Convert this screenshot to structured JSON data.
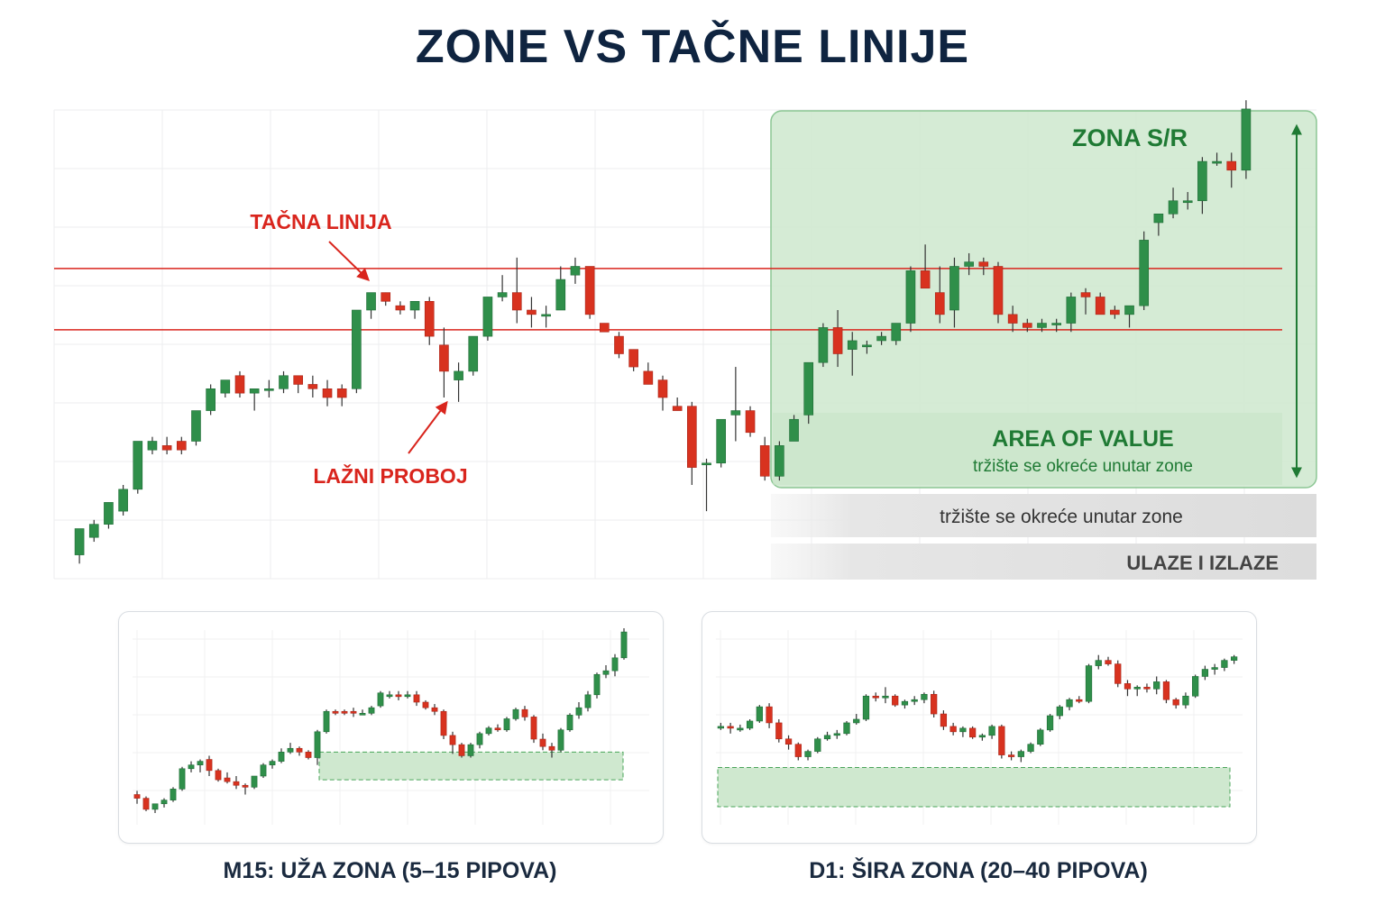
{
  "title": "ZONE VS TAČNE LINIJE",
  "colors": {
    "up": "#2f8f4a",
    "down": "#d8321f",
    "wick": "#333333",
    "line": "#d9251d",
    "zone": "#cfe8cf",
    "zone_border": "#4aa55a",
    "zone_text": "#1f7a34",
    "title": "#0f2440"
  },
  "chart_data": [
    {
      "type": "candlestick",
      "name": "main",
      "annotations": {
        "exact_line_label": "TAČNA LINIJA",
        "false_break_label": "LAŽNI PROBOJ",
        "zone_label": "ZONA S/R",
        "area_of_value_label": "AREA OF VALUE",
        "area_of_value_sub": "tržište se okreće unutar zone",
        "bar1_text": "tržište se okreće unutar zone",
        "bar2_text": "ULAZE I IZLAZE"
      },
      "ylim": [
        0,
        100
      ],
      "lines": [
        69.5,
        55.5
      ],
      "zone": [
        26,
        100
      ],
      "candles": [
        {
          "o": 4,
          "h": 9,
          "l": 2,
          "c": 10
        },
        {
          "o": 8,
          "h": 12,
          "l": 7,
          "c": 11
        },
        {
          "o": 11,
          "h": 16,
          "l": 10,
          "c": 16
        },
        {
          "o": 14,
          "h": 20,
          "l": 13,
          "c": 19
        },
        {
          "o": 19,
          "h": 30,
          "l": 18,
          "c": 30
        },
        {
          "o": 28,
          "h": 31,
          "l": 27,
          "c": 30
        },
        {
          "o": 29,
          "h": 31,
          "l": 27,
          "c": 28
        },
        {
          "o": 30,
          "h": 31,
          "l": 27,
          "c": 28
        },
        {
          "o": 30,
          "h": 36,
          "l": 29,
          "c": 37
        },
        {
          "o": 37,
          "h": 43,
          "l": 36,
          "c": 42
        },
        {
          "o": 41,
          "h": 44,
          "l": 40,
          "c": 44
        },
        {
          "o": 45,
          "h": 46,
          "l": 40,
          "c": 41
        },
        {
          "o": 41,
          "h": 42,
          "l": 37,
          "c": 42
        },
        {
          "o": 42,
          "h": 44,
          "l": 40,
          "c": 42
        },
        {
          "o": 42,
          "h": 46,
          "l": 41,
          "c": 45
        },
        {
          "o": 45,
          "h": 45,
          "l": 41,
          "c": 43
        },
        {
          "o": 43,
          "h": 45,
          "l": 40,
          "c": 42
        },
        {
          "o": 42,
          "h": 44,
          "l": 38,
          "c": 40
        },
        {
          "o": 42,
          "h": 43,
          "l": 38,
          "c": 40
        },
        {
          "o": 42,
          "h": 60,
          "l": 41,
          "c": 60
        },
        {
          "o": 60,
          "h": 64,
          "l": 58,
          "c": 64
        },
        {
          "o": 64,
          "h": 64,
          "l": 61,
          "c": 62
        },
        {
          "o": 61,
          "h": 62,
          "l": 59,
          "c": 60
        },
        {
          "o": 60,
          "h": 62,
          "l": 58,
          "c": 62
        },
        {
          "o": 62,
          "h": 63,
          "l": 52,
          "c": 54
        },
        {
          "o": 52,
          "h": 56,
          "l": 40,
          "c": 46
        },
        {
          "o": 44,
          "h": 48,
          "l": 39,
          "c": 46
        },
        {
          "o": 46,
          "h": 54,
          "l": 45,
          "c": 54
        },
        {
          "o": 54,
          "h": 63,
          "l": 53,
          "c": 63
        },
        {
          "o": 63,
          "h": 68,
          "l": 62,
          "c": 64
        },
        {
          "o": 64,
          "h": 72,
          "l": 57,
          "c": 60
        },
        {
          "o": 60,
          "h": 63,
          "l": 56,
          "c": 59
        },
        {
          "o": 59,
          "h": 61,
          "l": 56,
          "c": 59
        },
        {
          "o": 60,
          "h": 70,
          "l": 60,
          "c": 67
        },
        {
          "o": 68,
          "h": 72,
          "l": 66,
          "c": 70
        },
        {
          "o": 70,
          "h": 70,
          "l": 58,
          "c": 59
        },
        {
          "o": 57,
          "h": 57,
          "l": 55,
          "c": 55
        },
        {
          "o": 54,
          "h": 55,
          "l": 49,
          "c": 50
        },
        {
          "o": 51,
          "h": 51,
          "l": 46,
          "c": 47
        },
        {
          "o": 46,
          "h": 48,
          "l": 43,
          "c": 43
        },
        {
          "o": 44,
          "h": 45,
          "l": 37,
          "c": 40
        },
        {
          "o": 38,
          "h": 40,
          "l": 37,
          "c": 37
        },
        {
          "o": 38,
          "h": 39,
          "l": 20,
          "c": 24
        },
        {
          "o": 25,
          "h": 26,
          "l": 14,
          "c": 25
        },
        {
          "o": 25,
          "h": 35,
          "l": 24,
          "c": 35
        },
        {
          "o": 36,
          "h": 47,
          "l": 30,
          "c": 37
        },
        {
          "o": 37,
          "h": 38,
          "l": 31,
          "c": 32
        },
        {
          "o": 29,
          "h": 31,
          "l": 21,
          "c": 22
        },
        {
          "o": 22,
          "h": 30,
          "l": 21,
          "c": 29
        },
        {
          "o": 30,
          "h": 36,
          "l": 30,
          "c": 35
        },
        {
          "o": 36,
          "h": 48,
          "l": 34,
          "c": 48
        },
        {
          "o": 48,
          "h": 57,
          "l": 47,
          "c": 56
        },
        {
          "o": 56,
          "h": 60,
          "l": 47,
          "c": 50
        },
        {
          "o": 51,
          "h": 55,
          "l": 45,
          "c": 53
        },
        {
          "o": 52,
          "h": 53,
          "l": 50,
          "c": 52
        },
        {
          "o": 53,
          "h": 55,
          "l": 52,
          "c": 54
        },
        {
          "o": 53,
          "h": 57,
          "l": 52,
          "c": 57
        },
        {
          "o": 57,
          "h": 70,
          "l": 55,
          "c": 69
        },
        {
          "o": 69,
          "h": 75,
          "l": 65,
          "c": 65
        },
        {
          "o": 64,
          "h": 70,
          "l": 57,
          "c": 59
        },
        {
          "o": 60,
          "h": 72,
          "l": 56,
          "c": 70
        },
        {
          "o": 70,
          "h": 73,
          "l": 68,
          "c": 71
        },
        {
          "o": 71,
          "h": 72,
          "l": 68,
          "c": 70
        },
        {
          "o": 70,
          "h": 71,
          "l": 57,
          "c": 59
        },
        {
          "o": 59,
          "h": 61,
          "l": 55,
          "c": 57
        },
        {
          "o": 57,
          "h": 58,
          "l": 55,
          "c": 56
        },
        {
          "o": 56,
          "h": 58,
          "l": 55,
          "c": 57
        },
        {
          "o": 57,
          "h": 58,
          "l": 55,
          "c": 57
        },
        {
          "o": 57,
          "h": 64,
          "l": 55,
          "c": 63
        },
        {
          "o": 64,
          "h": 65,
          "l": 59,
          "c": 63
        },
        {
          "o": 63,
          "h": 64,
          "l": 59,
          "c": 59
        },
        {
          "o": 60,
          "h": 61,
          "l": 58,
          "c": 59
        },
        {
          "o": 59,
          "h": 61,
          "l": 56,
          "c": 61
        },
        {
          "o": 61,
          "h": 78,
          "l": 60,
          "c": 76
        },
        {
          "o": 80,
          "h": 82,
          "l": 77,
          "c": 82
        },
        {
          "o": 82,
          "h": 88,
          "l": 81,
          "c": 85
        },
        {
          "o": 85,
          "h": 87,
          "l": 83,
          "c": 85
        },
        {
          "o": 85,
          "h": 95,
          "l": 82,
          "c": 94
        },
        {
          "o": 94,
          "h": 96,
          "l": 93,
          "c": 94
        },
        {
          "o": 94,
          "h": 96,
          "l": 88,
          "c": 92
        },
        {
          "o": 92,
          "h": 108,
          "l": 90,
          "c": 106
        }
      ]
    },
    {
      "type": "candlestick",
      "name": "m15",
      "caption": "M15: UŽA ZONA (5–15 PIPOVA)",
      "ylim": [
        0,
        100
      ],
      "zone": [
        18,
        33
      ],
      "candles": [
        {
          "o": 10,
          "h": 12,
          "l": 5,
          "c": 8
        },
        {
          "o": 8,
          "h": 9,
          "l": 1,
          "c": 2
        },
        {
          "o": 2,
          "h": 5,
          "l": 0,
          "c": 5
        },
        {
          "o": 5,
          "h": 8,
          "l": 3,
          "c": 7
        },
        {
          "o": 7,
          "h": 14,
          "l": 6,
          "c": 13
        },
        {
          "o": 13,
          "h": 25,
          "l": 12,
          "c": 24
        },
        {
          "o": 24,
          "h": 28,
          "l": 22,
          "c": 26
        },
        {
          "o": 26,
          "h": 29,
          "l": 22,
          "c": 28
        },
        {
          "o": 29,
          "h": 31,
          "l": 20,
          "c": 23
        },
        {
          "o": 23,
          "h": 24,
          "l": 17,
          "c": 18
        },
        {
          "o": 19,
          "h": 22,
          "l": 16,
          "c": 17
        },
        {
          "o": 17,
          "h": 20,
          "l": 13,
          "c": 15
        },
        {
          "o": 15,
          "h": 16,
          "l": 10,
          "c": 14
        },
        {
          "o": 14,
          "h": 20,
          "l": 13,
          "c": 20
        },
        {
          "o": 20,
          "h": 27,
          "l": 19,
          "c": 26
        },
        {
          "o": 26,
          "h": 29,
          "l": 24,
          "c": 28
        },
        {
          "o": 28,
          "h": 35,
          "l": 27,
          "c": 33
        },
        {
          "o": 33,
          "h": 38,
          "l": 32,
          "c": 35
        },
        {
          "o": 35,
          "h": 36,
          "l": 31,
          "c": 33
        },
        {
          "o": 33,
          "h": 34,
          "l": 29,
          "c": 30
        },
        {
          "o": 30,
          "h": 45,
          "l": 26,
          "c": 44
        },
        {
          "o": 44,
          "h": 56,
          "l": 43,
          "c": 55
        },
        {
          "o": 55,
          "h": 56,
          "l": 53,
          "c": 54
        },
        {
          "o": 55,
          "h": 56,
          "l": 53,
          "c": 54
        },
        {
          "o": 55,
          "h": 57,
          "l": 52,
          "c": 54
        },
        {
          "o": 54,
          "h": 56,
          "l": 53,
          "c": 54
        },
        {
          "o": 54,
          "h": 58,
          "l": 53,
          "c": 57
        },
        {
          "o": 58,
          "h": 66,
          "l": 57,
          "c": 65
        },
        {
          "o": 64,
          "h": 66,
          "l": 62,
          "c": 64
        },
        {
          "o": 64,
          "h": 66,
          "l": 61,
          "c": 63
        },
        {
          "o": 64,
          "h": 66,
          "l": 62,
          "c": 64
        },
        {
          "o": 64,
          "h": 66,
          "l": 58,
          "c": 60
        },
        {
          "o": 60,
          "h": 61,
          "l": 56,
          "c": 57
        },
        {
          "o": 57,
          "h": 59,
          "l": 53,
          "c": 55
        },
        {
          "o": 55,
          "h": 56,
          "l": 40,
          "c": 42
        },
        {
          "o": 42,
          "h": 44,
          "l": 32,
          "c": 37
        },
        {
          "o": 37,
          "h": 38,
          "l": 30,
          "c": 31
        },
        {
          "o": 31,
          "h": 38,
          "l": 30,
          "c": 37
        },
        {
          "o": 37,
          "h": 44,
          "l": 35,
          "c": 43
        },
        {
          "o": 43,
          "h": 47,
          "l": 42,
          "c": 46
        },
        {
          "o": 46,
          "h": 48,
          "l": 44,
          "c": 45
        },
        {
          "o": 45,
          "h": 52,
          "l": 44,
          "c": 51
        },
        {
          "o": 51,
          "h": 57,
          "l": 50,
          "c": 56
        },
        {
          "o": 56,
          "h": 58,
          "l": 50,
          "c": 52
        },
        {
          "o": 52,
          "h": 53,
          "l": 38,
          "c": 40
        },
        {
          "o": 40,
          "h": 43,
          "l": 34,
          "c": 36
        },
        {
          "o": 36,
          "h": 38,
          "l": 30,
          "c": 34
        },
        {
          "o": 34,
          "h": 46,
          "l": 33,
          "c": 45
        },
        {
          "o": 45,
          "h": 54,
          "l": 44,
          "c": 53
        },
        {
          "o": 53,
          "h": 60,
          "l": 51,
          "c": 57
        },
        {
          "o": 57,
          "h": 66,
          "l": 55,
          "c": 64
        },
        {
          "o": 64,
          "h": 76,
          "l": 62,
          "c": 75
        },
        {
          "o": 75,
          "h": 80,
          "l": 73,
          "c": 77
        },
        {
          "o": 77,
          "h": 86,
          "l": 74,
          "c": 84
        },
        {
          "o": 84,
          "h": 100,
          "l": 83,
          "c": 98
        }
      ]
    },
    {
      "type": "candlestick",
      "name": "d1",
      "caption": "D1: ŠIRA ZONA (20–40 PIPOVA)",
      "ylim": [
        0,
        100
      ],
      "zone": [
        0,
        22
      ],
      "candles": [
        {
          "o": 45,
          "h": 47,
          "l": 43,
          "c": 45
        },
        {
          "o": 45,
          "h": 47,
          "l": 41,
          "c": 44
        },
        {
          "o": 44,
          "h": 46,
          "l": 42,
          "c": 44
        },
        {
          "o": 44,
          "h": 49,
          "l": 43,
          "c": 48
        },
        {
          "o": 48,
          "h": 57,
          "l": 47,
          "c": 56
        },
        {
          "o": 56,
          "h": 58,
          "l": 44,
          "c": 47
        },
        {
          "o": 47,
          "h": 49,
          "l": 36,
          "c": 38
        },
        {
          "o": 38,
          "h": 40,
          "l": 32,
          "c": 35
        },
        {
          "o": 35,
          "h": 36,
          "l": 26,
          "c": 28
        },
        {
          "o": 28,
          "h": 32,
          "l": 26,
          "c": 31
        },
        {
          "o": 31,
          "h": 39,
          "l": 30,
          "c": 38
        },
        {
          "o": 38,
          "h": 42,
          "l": 37,
          "c": 40
        },
        {
          "o": 40,
          "h": 43,
          "l": 38,
          "c": 41
        },
        {
          "o": 41,
          "h": 48,
          "l": 40,
          "c": 47
        },
        {
          "o": 47,
          "h": 52,
          "l": 46,
          "c": 49
        },
        {
          "o": 49,
          "h": 63,
          "l": 48,
          "c": 62
        },
        {
          "o": 62,
          "h": 64,
          "l": 59,
          "c": 61
        },
        {
          "o": 61,
          "h": 67,
          "l": 58,
          "c": 62
        },
        {
          "o": 62,
          "h": 63,
          "l": 56,
          "c": 57
        },
        {
          "o": 57,
          "h": 60,
          "l": 55,
          "c": 59
        },
        {
          "o": 59,
          "h": 62,
          "l": 57,
          "c": 60
        },
        {
          "o": 60,
          "h": 64,
          "l": 58,
          "c": 63
        },
        {
          "o": 63,
          "h": 65,
          "l": 50,
          "c": 52
        },
        {
          "o": 52,
          "h": 54,
          "l": 43,
          "c": 45
        },
        {
          "o": 45,
          "h": 47,
          "l": 40,
          "c": 42
        },
        {
          "o": 42,
          "h": 45,
          "l": 39,
          "c": 44
        },
        {
          "o": 44,
          "h": 45,
          "l": 38,
          "c": 39
        },
        {
          "o": 39,
          "h": 41,
          "l": 37,
          "c": 40
        },
        {
          "o": 40,
          "h": 46,
          "l": 38,
          "c": 45
        },
        {
          "o": 45,
          "h": 46,
          "l": 27,
          "c": 29
        },
        {
          "o": 29,
          "h": 31,
          "l": 26,
          "c": 28
        },
        {
          "o": 28,
          "h": 32,
          "l": 25,
          "c": 31
        },
        {
          "o": 31,
          "h": 36,
          "l": 30,
          "c": 35
        },
        {
          "o": 35,
          "h": 44,
          "l": 34,
          "c": 43
        },
        {
          "o": 43,
          "h": 52,
          "l": 42,
          "c": 51
        },
        {
          "o": 51,
          "h": 57,
          "l": 49,
          "c": 56
        },
        {
          "o": 56,
          "h": 61,
          "l": 54,
          "c": 60
        },
        {
          "o": 60,
          "h": 62,
          "l": 58,
          "c": 59
        },
        {
          "o": 59,
          "h": 80,
          "l": 58,
          "c": 79
        },
        {
          "o": 79,
          "h": 85,
          "l": 77,
          "c": 82
        },
        {
          "o": 82,
          "h": 84,
          "l": 79,
          "c": 80
        },
        {
          "o": 80,
          "h": 82,
          "l": 67,
          "c": 69
        },
        {
          "o": 69,
          "h": 71,
          "l": 62,
          "c": 66
        },
        {
          "o": 66,
          "h": 68,
          "l": 62,
          "c": 67
        },
        {
          "o": 67,
          "h": 69,
          "l": 64,
          "c": 66
        },
        {
          "o": 66,
          "h": 73,
          "l": 63,
          "c": 70
        },
        {
          "o": 70,
          "h": 71,
          "l": 58,
          "c": 60
        },
        {
          "o": 60,
          "h": 61,
          "l": 55,
          "c": 57
        },
        {
          "o": 57,
          "h": 64,
          "l": 55,
          "c": 62
        },
        {
          "o": 62,
          "h": 74,
          "l": 61,
          "c": 73
        },
        {
          "o": 73,
          "h": 79,
          "l": 71,
          "c": 77
        },
        {
          "o": 77,
          "h": 80,
          "l": 74,
          "c": 78
        },
        {
          "o": 78,
          "h": 83,
          "l": 76,
          "c": 82
        },
        {
          "o": 82,
          "h": 85,
          "l": 80,
          "c": 84
        }
      ]
    }
  ]
}
